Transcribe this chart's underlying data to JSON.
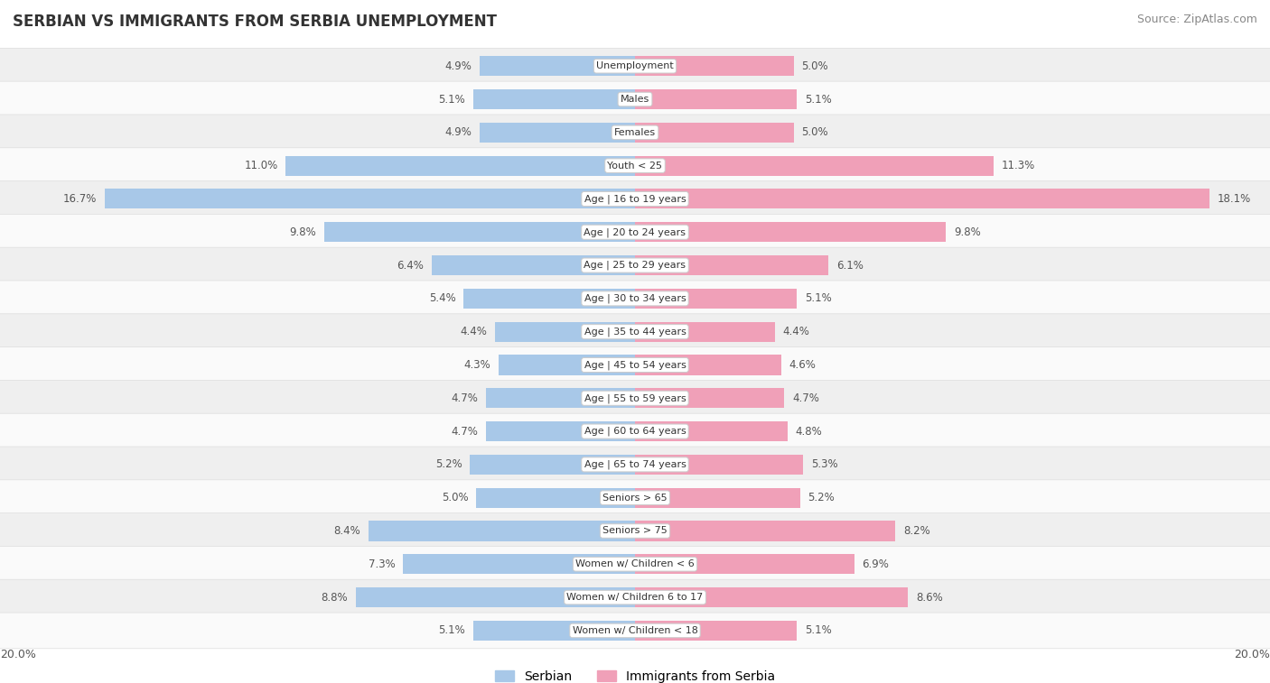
{
  "title": "SERBIAN VS IMMIGRANTS FROM SERBIA UNEMPLOYMENT",
  "source": "Source: ZipAtlas.com",
  "categories": [
    "Unemployment",
    "Males",
    "Females",
    "Youth < 25",
    "Age | 16 to 19 years",
    "Age | 20 to 24 years",
    "Age | 25 to 29 years",
    "Age | 30 to 34 years",
    "Age | 35 to 44 years",
    "Age | 45 to 54 years",
    "Age | 55 to 59 years",
    "Age | 60 to 64 years",
    "Age | 65 to 74 years",
    "Seniors > 65",
    "Seniors > 75",
    "Women w/ Children < 6",
    "Women w/ Children 6 to 17",
    "Women w/ Children < 18"
  ],
  "serbian": [
    4.9,
    5.1,
    4.9,
    11.0,
    16.7,
    9.8,
    6.4,
    5.4,
    4.4,
    4.3,
    4.7,
    4.7,
    5.2,
    5.0,
    8.4,
    7.3,
    8.8,
    5.1
  ],
  "immigrants": [
    5.0,
    5.1,
    5.0,
    11.3,
    18.1,
    9.8,
    6.1,
    5.1,
    4.4,
    4.6,
    4.7,
    4.8,
    5.3,
    5.2,
    8.2,
    6.9,
    8.6,
    5.1
  ],
  "serbian_color": "#a8c8e8",
  "immigrant_color": "#f0a0b8",
  "row_bg_even": "#efefef",
  "row_bg_odd": "#fafafa",
  "axis_limit": 20.0,
  "legend_serbian": "Serbian",
  "legend_immigrant": "Immigrants from Serbia",
  "bar_height": 0.6,
  "label_fontsize": 8.5,
  "title_fontsize": 12,
  "source_fontsize": 9
}
